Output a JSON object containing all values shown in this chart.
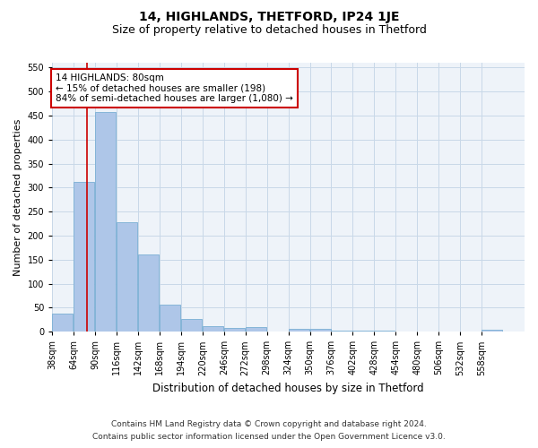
{
  "title": "14, HIGHLANDS, THETFORD, IP24 1JE",
  "subtitle": "Size of property relative to detached houses in Thetford",
  "xlabel": "Distribution of detached houses by size in Thetford",
  "ylabel": "Number of detached properties",
  "bin_labels": [
    "38sqm",
    "64sqm",
    "90sqm",
    "116sqm",
    "142sqm",
    "168sqm",
    "194sqm",
    "220sqm",
    "246sqm",
    "272sqm",
    "298sqm",
    "324sqm",
    "350sqm",
    "376sqm",
    "402sqm",
    "428sqm",
    "454sqm",
    "480sqm",
    "506sqm",
    "532sqm",
    "558sqm"
  ],
  "bin_edges": [
    38,
    64,
    90,
    116,
    142,
    168,
    194,
    220,
    246,
    272,
    298,
    324,
    350,
    376,
    402,
    428,
    454,
    480,
    506,
    532,
    558,
    584
  ],
  "bar_heights": [
    38,
    312,
    458,
    228,
    160,
    57,
    27,
    12,
    8,
    10,
    0,
    5,
    6,
    2,
    3,
    2,
    0,
    0,
    0,
    0,
    4
  ],
  "bar_color": "#aec6e8",
  "bar_edge_color": "#7aafd4",
  "vline_x": 80,
  "vline_color": "#cc0000",
  "annotation_line1": "14 HIGHLANDS: 80sqm",
  "annotation_line2": "← 15% of detached houses are smaller (198)",
  "annotation_line3": "84% of semi-detached houses are larger (1,080) →",
  "annotation_box_color": "#ffffff",
  "annotation_box_edge": "#cc0000",
  "ylim": [
    0,
    560
  ],
  "yticks": [
    0,
    50,
    100,
    150,
    200,
    250,
    300,
    350,
    400,
    450,
    500,
    550
  ],
  "grid_color": "#c8d8e8",
  "background_color": "#eef3f9",
  "footer_line1": "Contains HM Land Registry data © Crown copyright and database right 2024.",
  "footer_line2": "Contains public sector information licensed under the Open Government Licence v3.0.",
  "title_fontsize": 10,
  "subtitle_fontsize": 9,
  "xlabel_fontsize": 8.5,
  "ylabel_fontsize": 8,
  "tick_fontsize": 7,
  "annotation_fontsize": 7.5,
  "footer_fontsize": 6.5
}
